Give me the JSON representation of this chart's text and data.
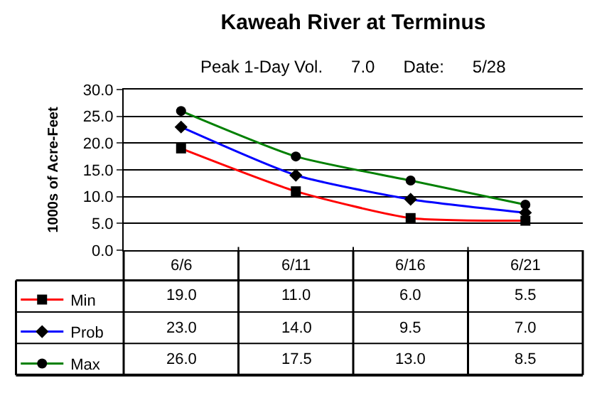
{
  "chart_data": {
    "type": "line",
    "title": "Kaweah River at Terminus",
    "subtitle": "Peak 1-Day Vol.      7.0      Date:      5/28",
    "ylabel": "1000s of Acre-Feet",
    "categories": [
      "6/6",
      "6/11",
      "6/16",
      "6/21"
    ],
    "series": [
      {
        "name": "Min",
        "color": "#ff0000",
        "marker": "square",
        "values": [
          19.0,
          11.0,
          6.0,
          5.5
        ],
        "value_labels": [
          "19.0",
          "11.0",
          "6.0",
          "5.5"
        ]
      },
      {
        "name": "Prob",
        "color": "#0000ff",
        "marker": "diamond",
        "values": [
          23.0,
          14.0,
          9.5,
          7.0
        ],
        "value_labels": [
          "23.0",
          "14.0",
          "9.5",
          "7.0"
        ]
      },
      {
        "name": "Max",
        "color": "#008000",
        "marker": "circle",
        "values": [
          26.0,
          17.5,
          13.0,
          8.5
        ],
        "value_labels": [
          "26.0",
          "17.5",
          "13.0",
          "8.5"
        ]
      }
    ],
    "ylim": [
      0,
      30
    ],
    "yticks": [
      {
        "value": 0,
        "label": "0.0"
      },
      {
        "value": 5,
        "label": "5.0"
      },
      {
        "value": 10,
        "label": "10.0"
      },
      {
        "value": 15,
        "label": "15.0"
      },
      {
        "value": 20,
        "label": "20.0"
      },
      {
        "value": 25,
        "label": "25.0"
      },
      {
        "value": 30,
        "label": "30.0"
      }
    ],
    "grid": "y",
    "legend": "bottom left"
  }
}
